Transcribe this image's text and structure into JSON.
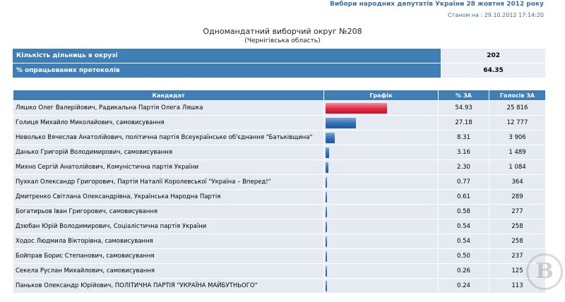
{
  "header": {
    "title": "Вибори народних депутатів України 28 жовтня 2012 року",
    "status_as_of": "Станом на : 29.10.2012 17:14:20"
  },
  "district": {
    "title": "Одномандатний виборчий округ №208",
    "region": "(Чернігівська область)"
  },
  "summary": [
    {
      "label": "Кількість дільниць в окрузі",
      "value": "202"
    },
    {
      "label": "% опрацьованих протоколів",
      "value": "64.35"
    }
  ],
  "results": {
    "columns": [
      "Кандидат",
      "Графік",
      "% ЗА",
      "Голосів ЗА"
    ],
    "rows": [
      {
        "candidate": "Ляшко Олег Валерійович, Радикальна Партія Олега Ляшка",
        "percent": 54.93,
        "percent_text": "54.93",
        "votes": "25 816",
        "bar_color": "#e02a44"
      },
      {
        "candidate": "Голиця Михайло Миколайович, самовисування",
        "percent": 27.18,
        "percent_text": "27.18",
        "votes": "12 777",
        "bar_color": "#2f6fb3"
      },
      {
        "candidate": "Невoлько Вячеслав Анатолійович, політична партія Всеукраїнське об'єднання \"Батьківщина\"",
        "percent": 8.31,
        "percent_text": "8.31",
        "votes": "3 906",
        "bar_color": "#2f6fb3"
      },
      {
        "candidate": "Данько Григорій Володимирович, самовисування",
        "percent": 3.16,
        "percent_text": "3.16",
        "votes": "1 489",
        "bar_color": "#2f6fb3"
      },
      {
        "candidate": "Михно Сергій Анатолійович, Комуністична партія України",
        "percent": 2.3,
        "percent_text": "2.30",
        "votes": "1 084",
        "bar_color": "#2f6fb3"
      },
      {
        "candidate": "Пухкал Олександр Григорович, Партія Наталії Королевської \"Україна – Вперед!\"",
        "percent": 0.77,
        "percent_text": "0.77",
        "votes": "364",
        "bar_color": "#2f6fb3"
      },
      {
        "candidate": "Дмитренко Світлана Олександрівна, Українська Народна Партія",
        "percent": 0.61,
        "percent_text": "0.61",
        "votes": "289",
        "bar_color": "#2f6fb3"
      },
      {
        "candidate": "Богатирьов Іван Григорович, самовисування",
        "percent": 0.58,
        "percent_text": "0.58",
        "votes": "277",
        "bar_color": "#2f6fb3"
      },
      {
        "candidate": "Дзюбан Юрій Володимирович, Соціалістична партія України",
        "percent": 0.54,
        "percent_text": "0.54",
        "votes": "258",
        "bar_color": "#2f6fb3"
      },
      {
        "candidate": "Ходос Людмила Вікторівна, самовисування",
        "percent": 0.54,
        "percent_text": "0.54",
        "votes": "258",
        "bar_color": "#2f6fb3"
      },
      {
        "candidate": "Бойправ Борис Степанович, самовисування",
        "percent": 0.5,
        "percent_text": "0.50",
        "votes": "237",
        "bar_color": "#2f6fb3"
      },
      {
        "candidate": "Секела Руслан Михайлович, самовисування",
        "percent": 0.26,
        "percent_text": "0.26",
        "votes": "125",
        "bar_color": "#2f6fb3"
      },
      {
        "candidate": "Паньков Олександр Юрійович, ПОЛІТИЧНА ПАРТІЯ \"УКРАЇНА МАЙБУТНЬОГО\"",
        "percent": 0.24,
        "percent_text": "0.24",
        "votes": "113",
        "bar_color": "#2f6fb3"
      }
    ]
  },
  "watermark": "B"
}
